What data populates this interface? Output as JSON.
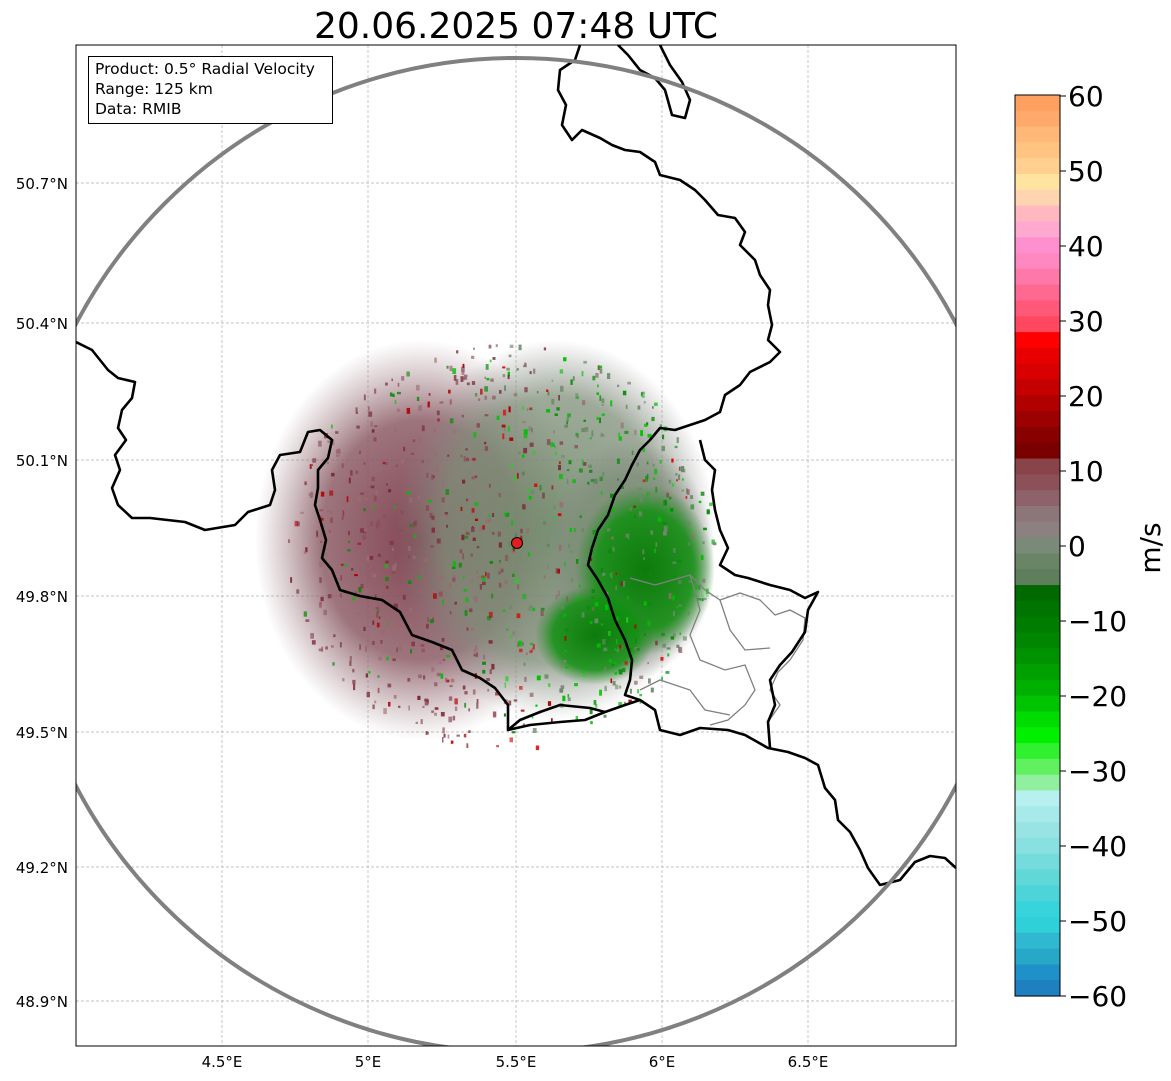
{
  "title": "20.06.2025 07:48 UTC",
  "info": {
    "product": "Product: 0.5° Radial Velocity",
    "range": "Range: 125 km",
    "data": "Data: RMIB"
  },
  "axes": {
    "lat_ticks": [
      "50.7°N",
      "50.4°N",
      "50.1°N",
      "49.8°N",
      "49.5°N",
      "49.2°N",
      "48.9°N"
    ],
    "lon_ticks": [
      "4.5°E",
      "5°E",
      "5.5°E",
      "6°E",
      "6.5°E"
    ]
  },
  "colorbar": {
    "label": "m/s",
    "ticks": [
      "60",
      "50",
      "40",
      "30",
      "20",
      "10",
      "0",
      "−10",
      "−20",
      "−30",
      "−40",
      "−50",
      "−60"
    ]
  },
  "colors": {
    "range_ring": "#808080",
    "border": "#000000",
    "radar_site": "#e02020",
    "receding": "#8a5a62",
    "approaching": "#1f7f1f"
  }
}
